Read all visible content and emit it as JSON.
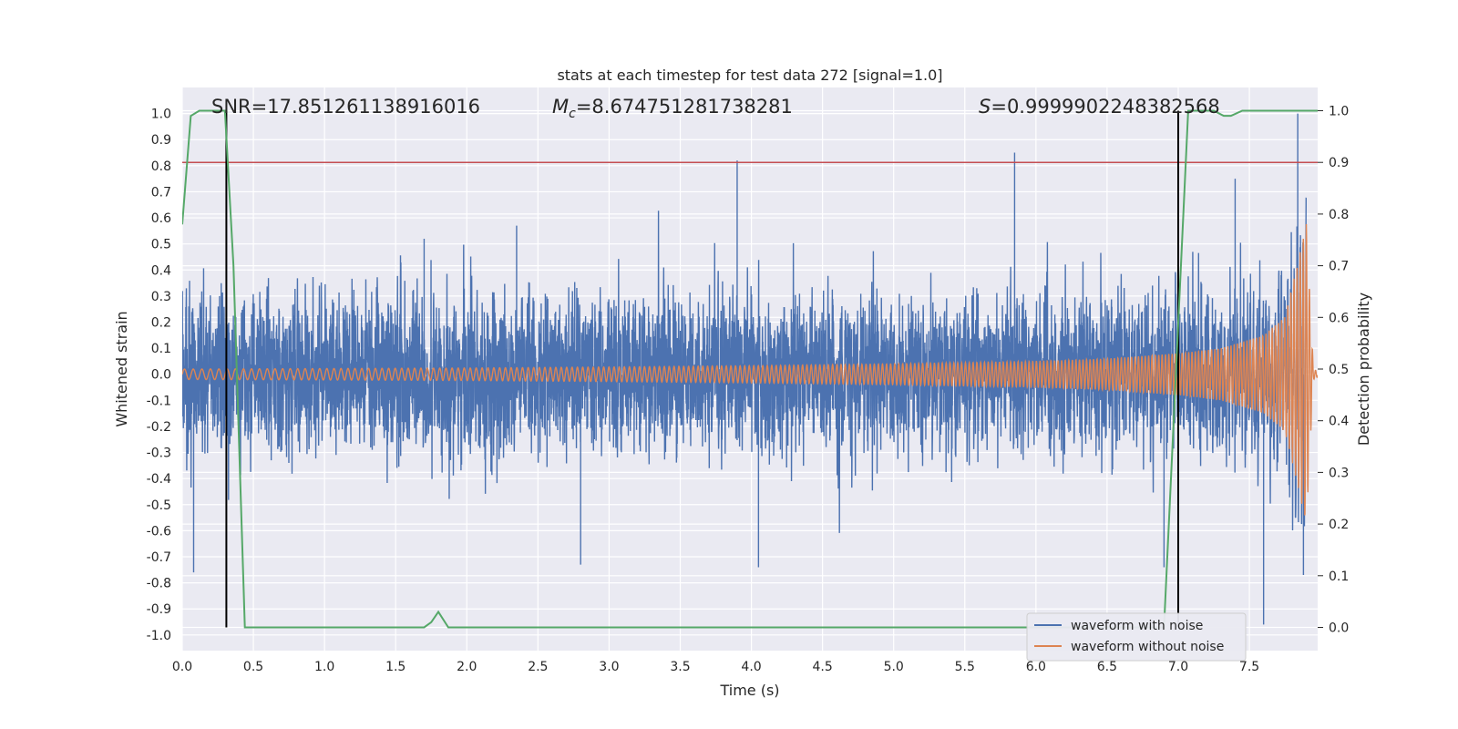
{
  "chart_data": {
    "type": "line",
    "title": "stats at each timestep for test data 272 [signal=1.0]",
    "xlabel": "Time (s)",
    "ylabel": "Whitened strain",
    "y2label": "Detection probability",
    "xlim": [
      0.0,
      7.98
    ],
    "ylim": [
      -1.06,
      1.1
    ],
    "y2lim": [
      -0.045,
      1.045
    ],
    "x_ticks": [
      "0.0",
      "0.5",
      "1.0",
      "1.5",
      "2.0",
      "2.5",
      "3.0",
      "3.5",
      "4.0",
      "4.5",
      "5.0",
      "5.5",
      "6.0",
      "6.5",
      "7.0",
      "7.5"
    ],
    "y_ticks": [
      "1.0",
      "0.9",
      "0.8",
      "0.7",
      "0.6",
      "0.5",
      "0.4",
      "0.3",
      "0.2",
      "0.1",
      "0.0",
      "-0.1",
      "-0.2",
      "-0.3",
      "-0.4",
      "-0.5",
      "-0.6",
      "-0.7",
      "-0.8",
      "-0.9",
      "-1.0"
    ],
    "y2_ticks": [
      "1.0",
      "0.9",
      "0.8",
      "0.7",
      "0.6",
      "0.5",
      "0.4",
      "0.3",
      "0.2",
      "0.1",
      "0.0"
    ],
    "grid": true,
    "legend": "bottom-right",
    "annotations": {
      "snr": "SNR=17.851261138916016",
      "mc_symbol": "M",
      "mc_sub": "c",
      "mc_value": "=8.674751281738281",
      "s_symbol": "S",
      "s_value": "=0.9999902248382568"
    },
    "threshold_y2": 0.9,
    "vertical_lines_x": [
      0.31,
      7.0
    ],
    "series": [
      {
        "name": "waveform with noise",
        "color": "#4c72b0",
        "description_points": {
          "x_range": [
            0.0,
            7.9
          ],
          "peaks_x": [
            0.31,
            1.7,
            2.35,
            3.9,
            5.85,
            7.4,
            7.84
          ],
          "peaks_y": [
            0.59,
            0.52,
            0.57,
            0.82,
            0.85,
            0.75,
            1.0
          ],
          "troughs_x": [
            0.08,
            2.8,
            4.05,
            6.9,
            7.6,
            7.88
          ],
          "troughs_y": [
            -0.76,
            -0.73,
            -0.74,
            -0.74,
            -0.96,
            -0.77
          ]
        }
      },
      {
        "name": "waveform without noise",
        "color": "#dd8452",
        "envelope_x": [
          0.0,
          1.0,
          2.0,
          3.0,
          4.0,
          5.0,
          6.0,
          6.5,
          7.0,
          7.3,
          7.6,
          7.75,
          7.85,
          7.9,
          7.95,
          7.98
        ],
        "envelope_y": [
          0.02,
          0.022,
          0.024,
          0.028,
          0.033,
          0.04,
          0.05,
          0.06,
          0.08,
          0.1,
          0.15,
          0.22,
          0.45,
          0.58,
          0.02,
          0.01
        ]
      },
      {
        "name": "detection probability",
        "color": "#55a868",
        "axis": "y2",
        "x": [
          0.0,
          0.06,
          0.12,
          0.3,
          0.36,
          0.44,
          1.7,
          1.75,
          1.8,
          1.87,
          6.9,
          7.07,
          7.25,
          7.32,
          7.37,
          7.45,
          7.5,
          7.98
        ],
        "y": [
          0.78,
          0.99,
          1.0,
          1.0,
          0.7,
          0.0,
          0.0,
          0.01,
          0.03,
          0.0,
          0.0,
          1.0,
          1.0,
          0.99,
          0.99,
          1.0,
          1.0,
          1.0
        ]
      }
    ],
    "legend_entries": [
      "waveform with noise",
      "waveform without noise"
    ],
    "colors": {
      "background": "#eaeaf2",
      "grid": "#ffffff",
      "threshold": "#c44e52",
      "vline": "#000000"
    }
  }
}
